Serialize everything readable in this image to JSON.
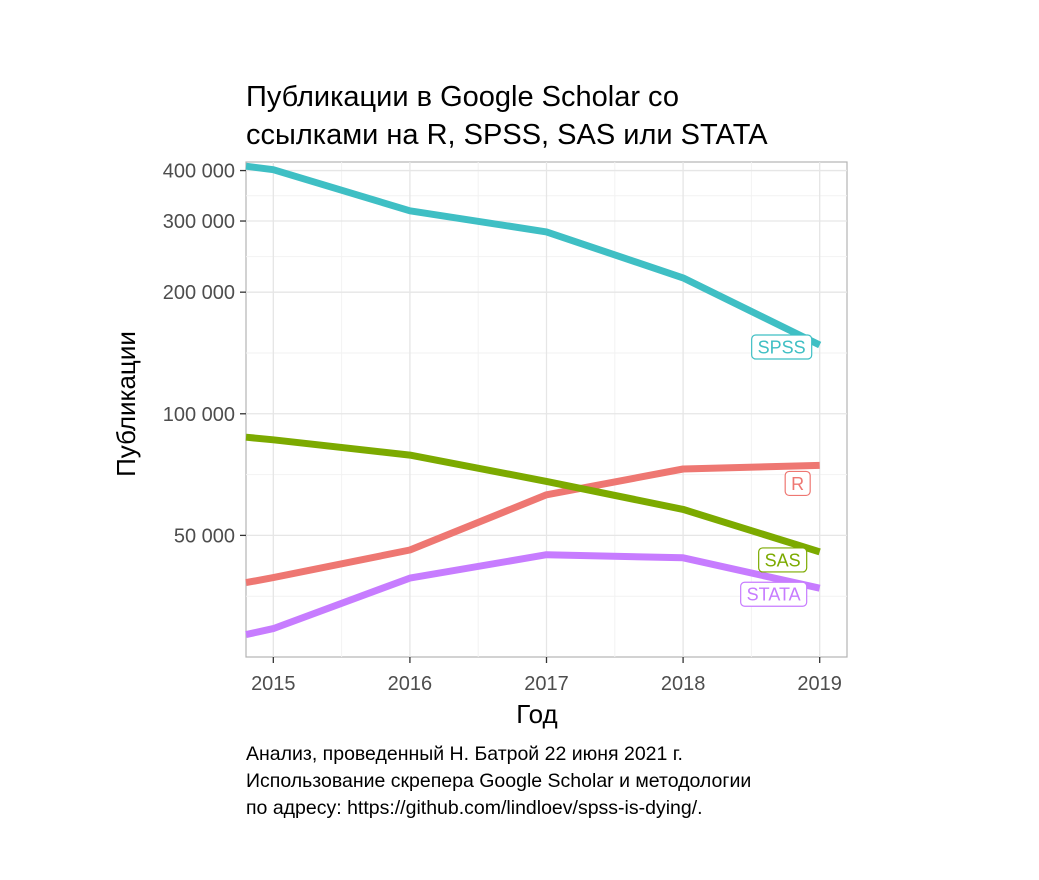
{
  "chart_data": {
    "type": "line",
    "title": [
      "Публикации в Google Scholar со",
      "ссылками на R, SPSS, SAS или STATA"
    ],
    "xlabel": "Год",
    "ylabel": "Публикации",
    "y_scale": "log",
    "grid": true,
    "legend": "direct-labels",
    "x_ticks": [
      "2015",
      "2016",
      "2017",
      "2018",
      "2019"
    ],
    "y_ticks": [
      {
        "value": 50000,
        "label": "50 000"
      },
      {
        "value": 100000,
        "label": "100 000"
      },
      {
        "value": 200000,
        "label": "200 000"
      },
      {
        "value": 300000,
        "label": "300 000"
      },
      {
        "value": 400000,
        "label": "400 000"
      }
    ],
    "xlim": [
      2014.8,
      2019.2
    ],
    "ylim": [
      25000,
      420000
    ],
    "series": [
      {
        "name": "SPSS",
        "color": "#3fbfc4",
        "points": [
          [
            2014.8,
            410000
          ],
          [
            2015,
            402000
          ],
          [
            2016,
            318000
          ],
          [
            2017,
            282000
          ],
          [
            2018,
            217000
          ],
          [
            2019,
            148000
          ]
        ]
      },
      {
        "name": "R",
        "color": "#ee7772",
        "points": [
          [
            2014.8,
            38200
          ],
          [
            2015,
            39300
          ],
          [
            2016,
            46000
          ],
          [
            2017,
            63000
          ],
          [
            2018,
            73000
          ],
          [
            2019,
            74500
          ]
        ]
      },
      {
        "name": "SAS",
        "color": "#7caa00",
        "points": [
          [
            2014.8,
            87500
          ],
          [
            2015,
            86200
          ],
          [
            2016,
            79000
          ],
          [
            2017,
            68000
          ],
          [
            2018,
            58000
          ],
          [
            2019,
            45500
          ]
        ]
      },
      {
        "name": "STATA",
        "color": "#c77cff",
        "points": [
          [
            2014.8,
            28400
          ],
          [
            2015,
            29400
          ],
          [
            2016,
            39200
          ],
          [
            2017,
            44800
          ],
          [
            2018,
            44000
          ],
          [
            2019,
            37000
          ]
        ]
      }
    ]
  },
  "caption": [
    "Анализ, проведенный Н. Батрой 22 июня 2021 г.",
    "Использование скрепера Google Scholar и методологии",
    "по адресу: https://github.com/lindloev/spss-is-dying/."
  ]
}
